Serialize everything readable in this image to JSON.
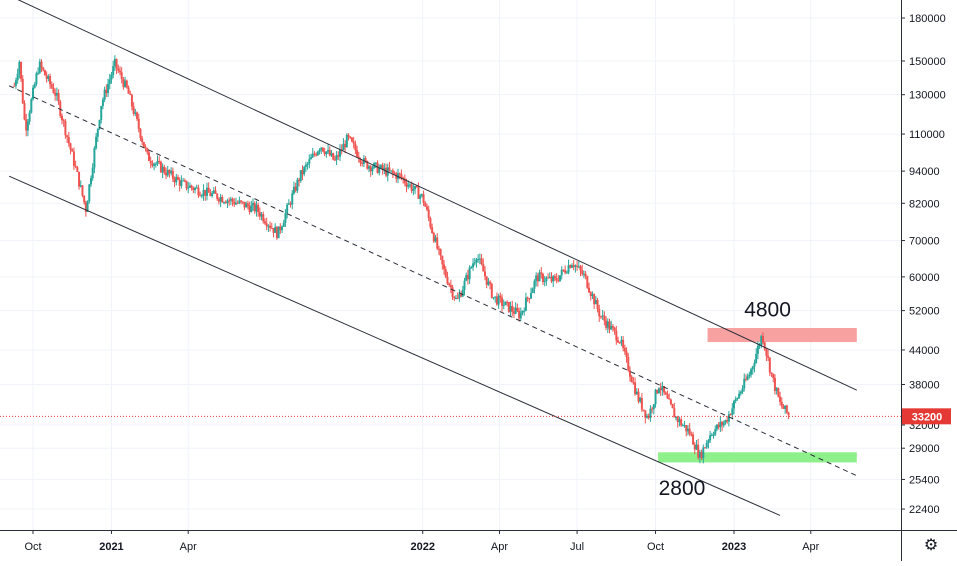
{
  "chart_data": {
    "type": "candlestick",
    "price_scale": "log",
    "grid": true,
    "y_ticks": [
      180000,
      150000,
      130000,
      110000,
      94000,
      82000,
      70000,
      60000,
      52000,
      44000,
      38000,
      32000,
      29000,
      25400,
      22400
    ],
    "y_tick_labels": [
      "180000",
      "150000",
      "130000",
      "110000",
      "94000",
      "82000",
      "70000",
      "60000",
      "52000",
      "44000",
      "38000",
      "32000",
      "29000",
      "25400",
      "22400"
    ],
    "x_ticks": [
      {
        "label": "Oct",
        "date": "2020-10-01",
        "year": false
      },
      {
        "label": "2021",
        "date": "2021-01-01",
        "year": true
      },
      {
        "label": "Apr",
        "date": "2021-04-01",
        "year": false
      },
      {
        "label": "2022",
        "date": "2022-01-01",
        "year": true
      },
      {
        "label": "Apr",
        "date": "2022-04-01",
        "year": false
      },
      {
        "label": "Jul",
        "date": "2022-07-01",
        "year": false
      },
      {
        "label": "Oct",
        "date": "2022-10-01",
        "year": false
      },
      {
        "label": "2023",
        "date": "2023-01-01",
        "year": true
      },
      {
        "label": "Apr",
        "date": "2023-04-01",
        "year": false
      }
    ],
    "last_price": 33200,
    "last_price_label": "33200",
    "colors": {
      "up": "#26a69a",
      "down": "#ef5350",
      "channel": "#2a2e39",
      "resistance_zone": "#f7a1a1",
      "support_zone": "#8ef08a",
      "price_line": "#e53935",
      "grid": "#f0f3fa"
    },
    "annotations": [
      {
        "text": "4800",
        "date": "2023-01-20",
        "price": 47000,
        "anchor": "start"
      },
      {
        "text": "2800",
        "date": "2022-11-01",
        "price": 26800,
        "anchor": "middle"
      }
    ],
    "zones": [
      {
        "name": "resistance",
        "date_from": "2022-12-01",
        "date_to": "2023-05-25",
        "price_low": 45500,
        "price_high": 48300
      },
      {
        "name": "support",
        "date_from": "2022-10-04",
        "date_to": "2023-05-25",
        "price_low": 27300,
        "price_high": 28500
      }
    ],
    "channel_lines": [
      {
        "name": "upper",
        "style": "solid",
        "from": {
          "date": "2020-09-03",
          "price": 198000
        },
        "to": {
          "date": "2023-05-25",
          "price": 37100
        }
      },
      {
        "name": "middle",
        "style": "dashed",
        "from": {
          "date": "2020-09-03",
          "price": 135000
        },
        "to": {
          "date": "2023-05-25",
          "price": 25800
        }
      },
      {
        "name": "lower",
        "style": "solid",
        "from": {
          "date": "2020-09-03",
          "price": 92000
        },
        "to": {
          "date": "2023-02-24",
          "price": 21800
        }
      }
    ],
    "close_anchors": [
      {
        "date": "2020-09-09",
        "close": 135000
      },
      {
        "date": "2020-09-15",
        "close": 150000
      },
      {
        "date": "2020-09-22",
        "close": 112000
      },
      {
        "date": "2020-10-08",
        "close": 148000
      },
      {
        "date": "2020-10-28",
        "close": 130000
      },
      {
        "date": "2020-11-20",
        "close": 95000
      },
      {
        "date": "2020-12-02",
        "close": 80000
      },
      {
        "date": "2020-12-20",
        "close": 125000
      },
      {
        "date": "2021-01-05",
        "close": 148000
      },
      {
        "date": "2021-01-20",
        "close": 132000
      },
      {
        "date": "2021-02-12",
        "close": 100000
      },
      {
        "date": "2021-03-01",
        "close": 95000
      },
      {
        "date": "2021-03-25",
        "close": 89000
      },
      {
        "date": "2021-04-20",
        "close": 86000
      },
      {
        "date": "2021-05-20",
        "close": 83000
      },
      {
        "date": "2021-06-20",
        "close": 80000
      },
      {
        "date": "2021-07-15",
        "close": 72000
      },
      {
        "date": "2021-08-10",
        "close": 92000
      },
      {
        "date": "2021-09-03",
        "close": 105000
      },
      {
        "date": "2021-09-20",
        "close": 98000
      },
      {
        "date": "2021-10-05",
        "close": 108000
      },
      {
        "date": "2021-10-25",
        "close": 97000
      },
      {
        "date": "2021-12-05",
        "close": 92000
      },
      {
        "date": "2022-01-01",
        "close": 84000
      },
      {
        "date": "2022-01-25",
        "close": 62000
      },
      {
        "date": "2022-02-10",
        "close": 54000
      },
      {
        "date": "2022-03-05",
        "close": 66000
      },
      {
        "date": "2022-03-25",
        "close": 55000
      },
      {
        "date": "2022-04-25",
        "close": 51000
      },
      {
        "date": "2022-05-15",
        "close": 60000
      },
      {
        "date": "2022-06-05",
        "close": 59000
      },
      {
        "date": "2022-06-25",
        "close": 64000
      },
      {
        "date": "2022-07-10",
        "close": 60000
      },
      {
        "date": "2022-07-28",
        "close": 51000
      },
      {
        "date": "2022-08-20",
        "close": 46000
      },
      {
        "date": "2022-09-10",
        "close": 36000
      },
      {
        "date": "2022-09-22",
        "close": 33000
      },
      {
        "date": "2022-10-05",
        "close": 38000
      },
      {
        "date": "2022-10-25",
        "close": 33000
      },
      {
        "date": "2022-11-10",
        "close": 31000
      },
      {
        "date": "2022-11-22",
        "close": 28000
      },
      {
        "date": "2022-12-05",
        "close": 31000
      },
      {
        "date": "2022-12-22",
        "close": 32500
      },
      {
        "date": "2023-01-05",
        "close": 36000
      },
      {
        "date": "2023-01-20",
        "close": 40000
      },
      {
        "date": "2023-02-03",
        "close": 47000
      },
      {
        "date": "2023-02-15",
        "close": 39000
      },
      {
        "date": "2023-02-24",
        "close": 35000
      },
      {
        "date": "2023-03-07",
        "close": 33200
      }
    ]
  },
  "ui": {
    "settings_icon": "gear-icon",
    "settings_glyph": "⚙"
  }
}
